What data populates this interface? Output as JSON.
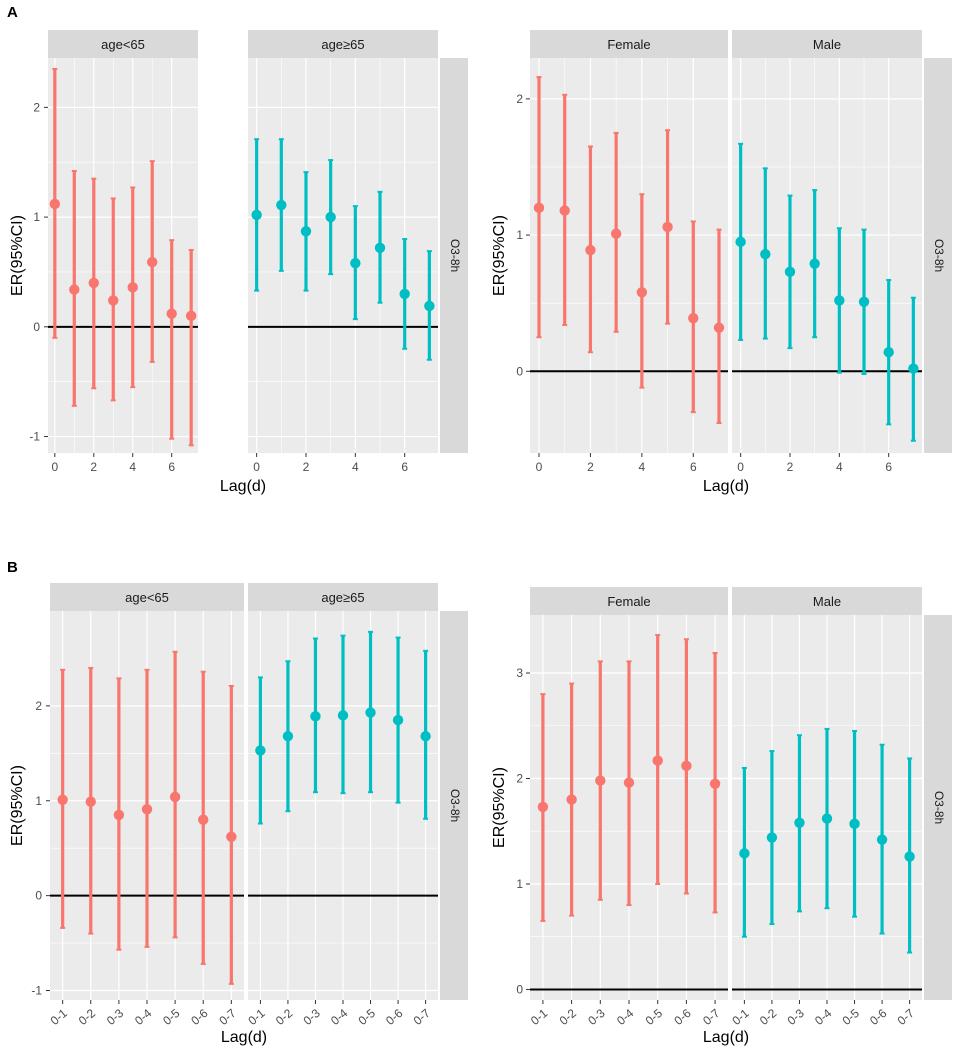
{
  "figure": {
    "panel_a_label": "A",
    "panel_b_label": "B",
    "colors": {
      "group1": "#F8766D",
      "group2": "#00BFC4",
      "panel_bg": "#EBEBEB",
      "strip_bg": "#D9D9D9",
      "grid": "#FFFFFF",
      "axis_text": "#4D4D4D"
    }
  },
  "chart_data": [
    {
      "id": "A-age",
      "type": "errorbar",
      "panel": "A",
      "xlabel": "Lag(d)",
      "ylabel": "ER(95%CI)",
      "strip_right": "O3-8h",
      "x_kind": "numeric",
      "xlim": [
        -0.35,
        7.35
      ],
      "xticks": [
        0,
        2,
        4,
        6
      ],
      "xtick_labels": [
        "0",
        "2",
        "4",
        "6"
      ],
      "ylim": [
        -1.15,
        2.45
      ],
      "yticks": [
        -1,
        0,
        1,
        2
      ],
      "ytick_labels": [
        "-1",
        "0",
        "1",
        "2"
      ],
      "reference_line": 0,
      "facets": [
        {
          "label": "age<65",
          "color": "#F8766D",
          "x": [
            0,
            1,
            2,
            3,
            4,
            5,
            6,
            7
          ],
          "estimate": [
            1.12,
            0.34,
            0.4,
            0.24,
            0.36,
            0.59,
            0.12,
            0.1
          ],
          "lower": [
            -0.1,
            -0.72,
            -0.56,
            -0.67,
            -0.55,
            -0.32,
            -1.02,
            -1.08
          ],
          "upper": [
            2.35,
            1.42,
            1.35,
            1.17,
            1.27,
            1.51,
            0.79,
            0.7
          ]
        },
        {
          "label": "age≥65",
          "color": "#00BFC4",
          "x": [
            0,
            1,
            2,
            3,
            4,
            5,
            6,
            7
          ],
          "estimate": [
            1.02,
            1.11,
            0.87,
            1.0,
            0.58,
            0.72,
            0.3,
            0.19
          ],
          "lower": [
            0.33,
            0.51,
            0.33,
            0.48,
            0.07,
            0.22,
            -0.2,
            -0.3
          ],
          "upper": [
            1.71,
            1.71,
            1.41,
            1.52,
            1.1,
            1.23,
            0.8,
            0.69
          ]
        }
      ]
    },
    {
      "id": "A-sex",
      "type": "errorbar",
      "panel": "A",
      "xlabel": "Lag(d)",
      "ylabel": "ER(95%CI)",
      "strip_right": "O3-8h",
      "x_kind": "numeric",
      "xlim": [
        -0.35,
        7.35
      ],
      "xticks": [
        0,
        2,
        4,
        6
      ],
      "xtick_labels": [
        "0",
        "2",
        "4",
        "6"
      ],
      "ylim": [
        -0.6,
        2.3
      ],
      "yticks": [
        0,
        1,
        2
      ],
      "ytick_labels": [
        "0",
        "1",
        "2"
      ],
      "reference_line": 0,
      "facets": [
        {
          "label": "Female",
          "color": "#F8766D",
          "x": [
            0,
            1,
            2,
            3,
            4,
            5,
            6,
            7
          ],
          "estimate": [
            1.2,
            1.18,
            0.89,
            1.01,
            0.58,
            1.06,
            0.39,
            0.32
          ],
          "lower": [
            0.25,
            0.34,
            0.14,
            0.29,
            -0.12,
            0.35,
            -0.3,
            -0.38
          ],
          "upper": [
            2.16,
            2.03,
            1.65,
            1.75,
            1.3,
            1.77,
            1.1,
            1.04
          ]
        },
        {
          "label": "Male",
          "color": "#00BFC4",
          "x": [
            0,
            1,
            2,
            3,
            4,
            5,
            6,
            7
          ],
          "estimate": [
            0.95,
            0.86,
            0.73,
            0.79,
            0.52,
            0.51,
            0.14,
            0.02
          ],
          "lower": [
            0.23,
            0.24,
            0.17,
            0.25,
            -0.01,
            -0.02,
            -0.39,
            -0.51
          ],
          "upper": [
            1.67,
            1.49,
            1.29,
            1.33,
            1.05,
            1.04,
            0.67,
            0.54
          ]
        }
      ]
    },
    {
      "id": "B-age",
      "type": "errorbar",
      "panel": "B",
      "xlabel": "Lag(d)",
      "ylabel": "ER(95%CI)",
      "strip_right": "O3-8h",
      "x_kind": "categorical",
      "xlim": [
        -0.45,
        6.45
      ],
      "xticks": [
        0,
        1,
        2,
        3,
        4,
        5,
        6
      ],
      "xtick_labels": [
        "0-1",
        "0-2",
        "0-3",
        "0-4",
        "0-5",
        "0-6",
        "0-7"
      ],
      "ylim": [
        -1.1,
        3.0
      ],
      "yticks": [
        -1,
        0,
        1,
        2
      ],
      "ytick_labels": [
        "-1",
        "0",
        "1",
        "2"
      ],
      "reference_line": 0,
      "facets": [
        {
          "label": "age<65",
          "color": "#F8766D",
          "x": [
            0,
            1,
            2,
            3,
            4,
            5,
            6
          ],
          "estimate": [
            1.01,
            0.99,
            0.85,
            0.91,
            1.04,
            0.8,
            0.62
          ],
          "lower": [
            -0.34,
            -0.4,
            -0.57,
            -0.54,
            -0.44,
            -0.72,
            -0.93
          ],
          "upper": [
            2.38,
            2.4,
            2.29,
            2.38,
            2.57,
            2.36,
            2.21
          ]
        },
        {
          "label": "age≥65",
          "color": "#00BFC4",
          "x": [
            0,
            1,
            2,
            3,
            4,
            5,
            6
          ],
          "estimate": [
            1.53,
            1.68,
            1.89,
            1.9,
            1.93,
            1.85,
            1.68
          ],
          "lower": [
            0.76,
            0.89,
            1.09,
            1.08,
            1.09,
            0.98,
            0.81
          ],
          "upper": [
            2.3,
            2.47,
            2.71,
            2.74,
            2.78,
            2.72,
            2.58
          ]
        }
      ]
    },
    {
      "id": "B-sex",
      "type": "errorbar",
      "panel": "B",
      "xlabel": "Lag(d)",
      "ylabel": "ER(95%CI)",
      "strip_right": "O3-8h",
      "x_kind": "categorical",
      "xlim": [
        -0.45,
        6.45
      ],
      "xticks": [
        0,
        1,
        2,
        3,
        4,
        5,
        6
      ],
      "xtick_labels": [
        "0-1",
        "0-2",
        "0-3",
        "0-4",
        "0-5",
        "0-6",
        "0-7"
      ],
      "ylim": [
        -0.1,
        3.55
      ],
      "yticks": [
        0,
        1,
        2,
        3
      ],
      "ytick_labels": [
        "0",
        "1",
        "2",
        "3"
      ],
      "reference_line": 0,
      "facets": [
        {
          "label": "Female",
          "color": "#F8766D",
          "x": [
            0,
            1,
            2,
            3,
            4,
            5,
            6
          ],
          "estimate": [
            1.73,
            1.8,
            1.98,
            1.96,
            2.17,
            2.12,
            1.95
          ],
          "lower": [
            0.65,
            0.7,
            0.85,
            0.8,
            1.0,
            0.91,
            0.73
          ],
          "upper": [
            2.8,
            2.9,
            3.11,
            3.11,
            3.36,
            3.32,
            3.19
          ]
        },
        {
          "label": "Male",
          "color": "#00BFC4",
          "x": [
            0,
            1,
            2,
            3,
            4,
            5,
            6
          ],
          "estimate": [
            1.29,
            1.44,
            1.58,
            1.62,
            1.57,
            1.42,
            1.26
          ],
          "lower": [
            0.5,
            0.62,
            0.74,
            0.77,
            0.69,
            0.53,
            0.35
          ],
          "upper": [
            2.1,
            2.26,
            2.41,
            2.47,
            2.45,
            2.32,
            2.19
          ]
        }
      ]
    }
  ]
}
